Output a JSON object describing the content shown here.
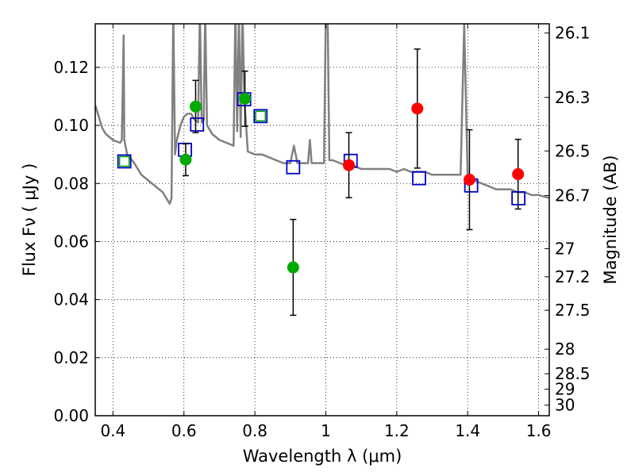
{
  "chart_data": {
    "type": "scatter",
    "xlabel": "Wavelength  λ (μm)",
    "ylabel": "Flux  Fν  ( μJy )",
    "y2label": "Magnitude (AB)",
    "xlim": [
      0.35,
      1.63
    ],
    "ylim": [
      0.0,
      0.135
    ],
    "grid": true,
    "x_ticks": [
      0.4,
      0.6,
      0.8,
      1.0,
      1.2,
      1.4,
      1.6
    ],
    "x_tick_labels": [
      "0.4",
      "0.6",
      "0.8",
      "1",
      "1.2",
      "1.4",
      "1.6"
    ],
    "y_ticks": [
      0.0,
      0.02,
      0.04,
      0.06,
      0.08,
      0.1,
      0.12
    ],
    "y_tick_labels": [
      "0.00",
      "0.02",
      "0.04",
      "0.06",
      "0.08",
      "0.10",
      "0.12"
    ],
    "mag_ticks": [
      26.1,
      26.3,
      26.5,
      26.7,
      27,
      27.2,
      27.5,
      28,
      28.5,
      29,
      30
    ],
    "mag_tick_labels": [
      "26.1",
      "26.3",
      "26.5",
      "26.7",
      "27",
      "27.2",
      "27.5",
      "28",
      "28.5",
      "29",
      "30"
    ],
    "series": [
      {
        "kind": "spectrum",
        "color": "#808080",
        "x": [
          0.35,
          0.37,
          0.38,
          0.4,
          0.42,
          0.425,
          0.43,
          0.432,
          0.44,
          0.46,
          0.48,
          0.5,
          0.52,
          0.54,
          0.55,
          0.56,
          0.565,
          0.57,
          0.575,
          0.58,
          0.59,
          0.6,
          0.61,
          0.62,
          0.63,
          0.64,
          0.645,
          0.65,
          0.656,
          0.66,
          0.665,
          0.67,
          0.68,
          0.7,
          0.72,
          0.74,
          0.745,
          0.75,
          0.755,
          0.76,
          0.765,
          0.77,
          0.78,
          0.8,
          0.82,
          0.84,
          0.86,
          0.88,
          0.9,
          0.91,
          0.92,
          0.94,
          0.95,
          0.955,
          0.96,
          0.98,
          0.995,
          1.0,
          1.005,
          1.01,
          1.02,
          1.04,
          1.06,
          1.08,
          1.1,
          1.12,
          1.14,
          1.16,
          1.18,
          1.2,
          1.22,
          1.24,
          1.26,
          1.28,
          1.3,
          1.32,
          1.34,
          1.36,
          1.37,
          1.38,
          1.39,
          1.4,
          1.42,
          1.44,
          1.46,
          1.48,
          1.5,
          1.52,
          1.54,
          1.56,
          1.58,
          1.6,
          1.63
        ],
        "y": [
          0.107,
          0.099,
          0.097,
          0.095,
          0.094,
          0.095,
          0.131,
          0.095,
          0.09,
          0.087,
          0.083,
          0.081,
          0.079,
          0.077,
          0.075,
          0.073,
          0.075,
          0.14,
          0.09,
          0.095,
          0.1,
          0.103,
          0.104,
          0.104,
          0.102,
          0.101,
          0.14,
          0.101,
          0.102,
          0.14,
          0.1,
          0.099,
          0.097,
          0.095,
          0.094,
          0.093,
          0.14,
          0.098,
          0.14,
          0.096,
          0.14,
          0.11,
          0.091,
          0.09,
          0.09,
          0.089,
          0.088,
          0.087,
          0.087,
          0.093,
          0.087,
          0.087,
          0.087,
          0.095,
          0.087,
          0.087,
          0.087,
          0.14,
          0.14,
          0.088,
          0.088,
          0.087,
          0.086,
          0.086,
          0.085,
          0.085,
          0.085,
          0.085,
          0.085,
          0.084,
          0.085,
          0.084,
          0.084,
          0.084,
          0.083,
          0.083,
          0.083,
          0.083,
          0.083,
          0.083,
          0.135,
          0.082,
          0.081,
          0.08,
          0.079,
          0.078,
          0.078,
          0.078,
          0.077,
          0.077,
          0.076,
          0.076,
          0.075
        ]
      },
      {
        "kind": "green_points",
        "color": "#00aa00",
        "x": [
          0.605,
          0.633,
          0.772,
          0.908
        ],
        "y": [
          0.0882,
          0.1065,
          0.1092,
          0.0511
        ],
        "yerr": [
          0.0055,
          0.009,
          0.0095,
          0.0165
        ]
      },
      {
        "kind": "red_points",
        "color": "#ff0000",
        "x": [
          1.065,
          1.258,
          1.405,
          1.542
        ],
        "y": [
          0.0863,
          0.1058,
          0.0813,
          0.0832
        ],
        "yerr": [
          0.0112,
          0.0205,
          0.0172,
          0.012
        ]
      },
      {
        "kind": "model_squares",
        "color": "#0000cc",
        "x": [
          0.432,
          0.603,
          0.637,
          0.77,
          0.816,
          0.908,
          1.07,
          1.263,
          1.41,
          1.543
        ],
        "y": [
          0.0876,
          0.0916,
          0.1003,
          0.109,
          0.1032,
          0.0856,
          0.0878,
          0.0818,
          0.0793,
          0.0749
        ]
      },
      {
        "kind": "green_squares",
        "color": "#00aa00",
        "x": [
          0.432,
          0.816
        ],
        "y": [
          0.0876,
          0.1032
        ]
      }
    ]
  }
}
